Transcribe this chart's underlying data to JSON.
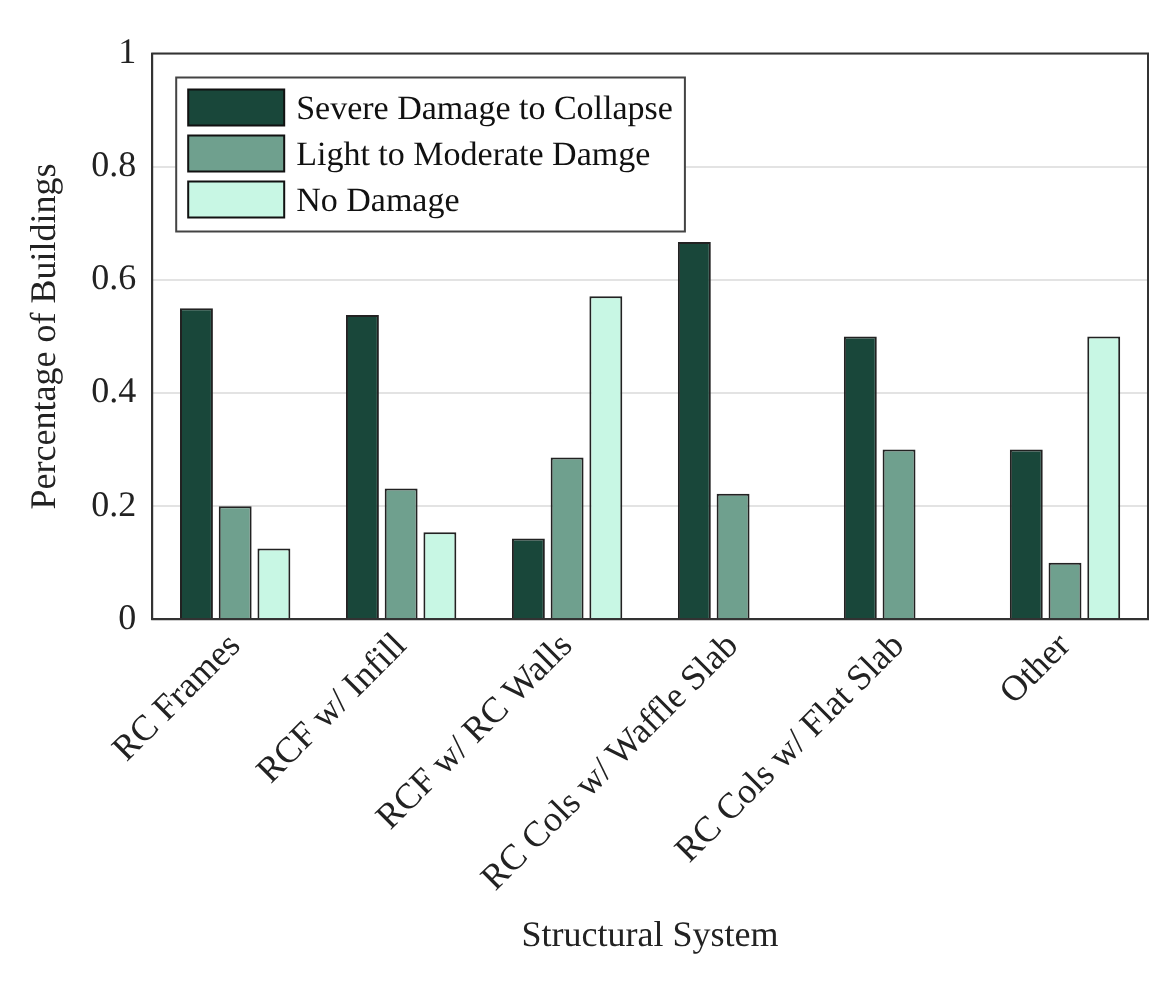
{
  "chart_data": {
    "type": "bar",
    "xlabel": "Structural System",
    "ylabel": "Percentage of Buildings",
    "categories": [
      "RC Frames",
      "RCF w/ Infill",
      "RCF w/ RC Walls",
      "RC Cols w/ Waffle Slab",
      "RC Cols w/ Flat Slab",
      "Other"
    ],
    "series": [
      {
        "name": "Severe Damage to Collapse",
        "color": "#19473a",
        "values": [
          0.55,
          0.538,
          0.143,
          0.667,
          0.5,
          0.3
        ]
      },
      {
        "name": "Light to Moderate Damge",
        "color": "#6fa08e",
        "values": [
          0.2,
          0.231,
          0.286,
          0.222,
          0.3,
          0.1
        ]
      },
      {
        "name": "No Damage",
        "color": "#c8f7e4",
        "values": [
          0.125,
          0.154,
          0.571,
          0,
          0,
          0.5
        ]
      }
    ],
    "ylim": [
      0,
      1
    ],
    "yticks": [
      0,
      0.2,
      0.4,
      0.6,
      0.8,
      1
    ],
    "grid": "y",
    "legend": "top left"
  }
}
